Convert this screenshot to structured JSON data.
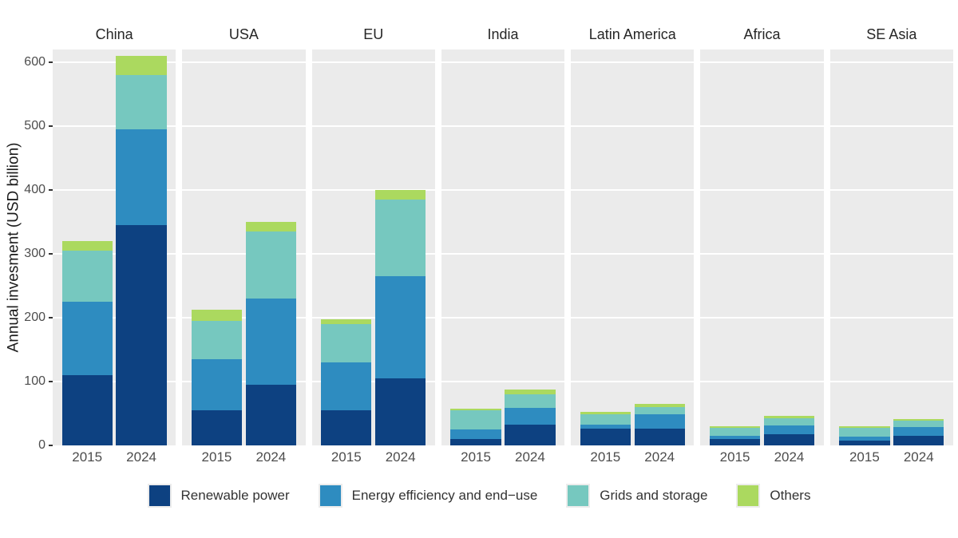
{
  "chart_data": {
    "type": "bar",
    "stacked": true,
    "title": "",
    "xlabel": "",
    "ylabel": "Annual invesment (USD billion)",
    "ylim": [
      0,
      620
    ],
    "yticks": [
      0,
      100,
      200,
      300,
      400,
      500,
      600
    ],
    "grid": "major-horizontal-white",
    "panel_background": "#ebebeb",
    "legend_position": "bottom",
    "categories": [
      "2015",
      "2024"
    ],
    "series": [
      {
        "name": "Renewable power",
        "color": "#0d4181"
      },
      {
        "name": "Energy efficiency and end−use",
        "color": "#2e8cc0"
      },
      {
        "name": "Grids and storage",
        "color": "#76c8bf"
      },
      {
        "name": "Others",
        "color": "#abd95f"
      }
    ],
    "facets": [
      {
        "label": "China",
        "bars": [
          {
            "year": "2015",
            "segments": [
              110,
              115,
              80,
              15
            ]
          },
          {
            "year": "2024",
            "segments": [
              345,
              150,
              85,
              30
            ]
          }
        ]
      },
      {
        "label": "USA",
        "bars": [
          {
            "year": "2015",
            "segments": [
              55,
              80,
              60,
              18
            ]
          },
          {
            "year": "2024",
            "segments": [
              95,
              135,
              105,
              15
            ]
          }
        ]
      },
      {
        "label": "EU",
        "bars": [
          {
            "year": "2015",
            "segments": [
              55,
              75,
              60,
              7
            ]
          },
          {
            "year": "2024",
            "segments": [
              105,
              160,
              120,
              15
            ]
          }
        ]
      },
      {
        "label": "India",
        "bars": [
          {
            "year": "2015",
            "segments": [
              10,
              15,
              30,
              3
            ]
          },
          {
            "year": "2024",
            "segments": [
              32,
              27,
              21,
              8
            ]
          }
        ]
      },
      {
        "label": "Latin America",
        "bars": [
          {
            "year": "2015",
            "segments": [
              26,
              6,
              17,
              4
            ]
          },
          {
            "year": "2024",
            "segments": [
              26,
              23,
              11,
              5
            ]
          }
        ]
      },
      {
        "label": "Africa",
        "bars": [
          {
            "year": "2015",
            "segments": [
              10,
              5,
              13,
              2
            ]
          },
          {
            "year": "2024",
            "segments": [
              17,
              14,
              12,
              3
            ]
          }
        ]
      },
      {
        "label": "SE Asia",
        "bars": [
          {
            "year": "2015",
            "segments": [
              8,
              6,
              13,
              3
            ]
          },
          {
            "year": "2024",
            "segments": [
              15,
              14,
              10,
              2
            ]
          }
        ]
      }
    ]
  },
  "legend": {
    "items": [
      {
        "label": "Renewable power",
        "color": "#0d4181"
      },
      {
        "label": "Energy efficiency and end−use",
        "color": "#2e8cc0"
      },
      {
        "label": "Grids and storage",
        "color": "#76c8bf"
      },
      {
        "label": "Others",
        "color": "#abd95f"
      }
    ]
  }
}
